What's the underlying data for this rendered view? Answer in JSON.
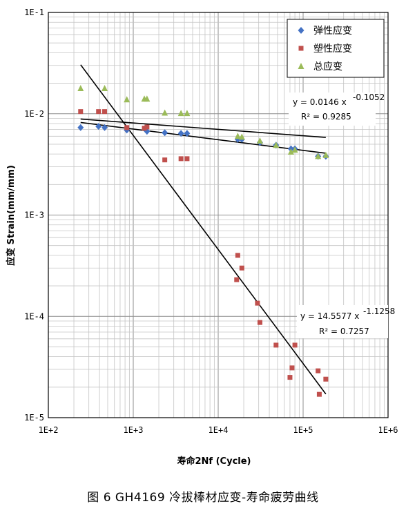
{
  "chart_data": {
    "type": "scatter",
    "scale": "log-log",
    "xlim": [
      100,
      1000000
    ],
    "ylim": [
      1e-05,
      0.1
    ],
    "xlabel": "寿命2Nf (Cycle)",
    "ylabel": "应变 Strain(mm/mm)",
    "x_ticks": [
      "1E+2",
      "1E+3",
      "1E+4",
      "1E+5",
      "1E+6"
    ],
    "y_ticks": [
      "1E-1",
      "1E-2",
      "1E-3",
      "1E-4",
      "1E-5"
    ],
    "grid": true,
    "legend_position": "top-right",
    "series": [
      {
        "name": "弹性应变",
        "marker": "diamond",
        "color": "#4472C4",
        "points": [
          [
            240,
            0.0073
          ],
          [
            390,
            0.0075
          ],
          [
            460,
            0.0073
          ],
          [
            840,
            0.0069
          ],
          [
            1450,
            0.0067
          ],
          [
            2350,
            0.0065
          ],
          [
            3650,
            0.0064
          ],
          [
            4300,
            0.0064
          ],
          [
            17000,
            0.0056
          ],
          [
            19000,
            0.0056
          ],
          [
            31000,
            0.0052
          ],
          [
            48000,
            0.0049
          ],
          [
            72000,
            0.0045
          ],
          [
            80000,
            0.0045
          ],
          [
            150000,
            0.0038
          ],
          [
            185000,
            0.0038
          ]
        ]
      },
      {
        "name": "塑性应变",
        "marker": "square",
        "color": "#C0504D",
        "points": [
          [
            240,
            0.0105
          ],
          [
            390,
            0.0105
          ],
          [
            460,
            0.0105
          ],
          [
            840,
            0.0073
          ],
          [
            1350,
            0.0072
          ],
          [
            1450,
            0.0074
          ],
          [
            2350,
            0.0035
          ],
          [
            3650,
            0.0036
          ],
          [
            4300,
            0.0036
          ],
          [
            16500,
            0.00023
          ],
          [
            17000,
            0.0004
          ],
          [
            19000,
            0.0003
          ],
          [
            29000,
            0.000135
          ],
          [
            31000,
            8.7e-05
          ],
          [
            48000,
            5.2e-05
          ],
          [
            70000,
            2.5e-05
          ],
          [
            74000,
            3.1e-05
          ],
          [
            80000,
            5.2e-05
          ],
          [
            150000,
            2.9e-05
          ],
          [
            155000,
            1.7e-05
          ],
          [
            185000,
            2.4e-05
          ]
        ]
      },
      {
        "name": "总应变",
        "marker": "triangle",
        "color": "#9BBB59",
        "points": [
          [
            240,
            0.0178
          ],
          [
            460,
            0.0178
          ],
          [
            840,
            0.0138
          ],
          [
            1350,
            0.014
          ],
          [
            1450,
            0.014
          ],
          [
            2350,
            0.0102
          ],
          [
            3650,
            0.0101
          ],
          [
            4300,
            0.0101
          ],
          [
            17000,
            0.006
          ],
          [
            19000,
            0.0059
          ],
          [
            31000,
            0.0054
          ],
          [
            48000,
            0.0049
          ],
          [
            72000,
            0.0042
          ],
          [
            80000,
            0.0044
          ],
          [
            150000,
            0.0038
          ],
          [
            185000,
            0.0039
          ]
        ]
      }
    ],
    "trendlines": [
      {
        "a": 0.0146,
        "b": -0.1052,
        "x_range": [
          240,
          185000
        ],
        "equation": "y = 0.0146 x",
        "exponent": "-0.1052",
        "r2_label": "R² = 0.9285"
      },
      {
        "a": 14.5577,
        "b": -1.1258,
        "x_range": [
          240,
          185000
        ],
        "equation": "y = 14.5577 x",
        "exponent": "-1.1258",
        "r2_label": "R² = 0.7257"
      },
      {
        "a": 0.0125,
        "b": -0.0628,
        "x_range": [
          240,
          185000
        ]
      }
    ]
  },
  "caption": "图 6  GH4169 冷拔棒材应变-寿命疲劳曲线"
}
